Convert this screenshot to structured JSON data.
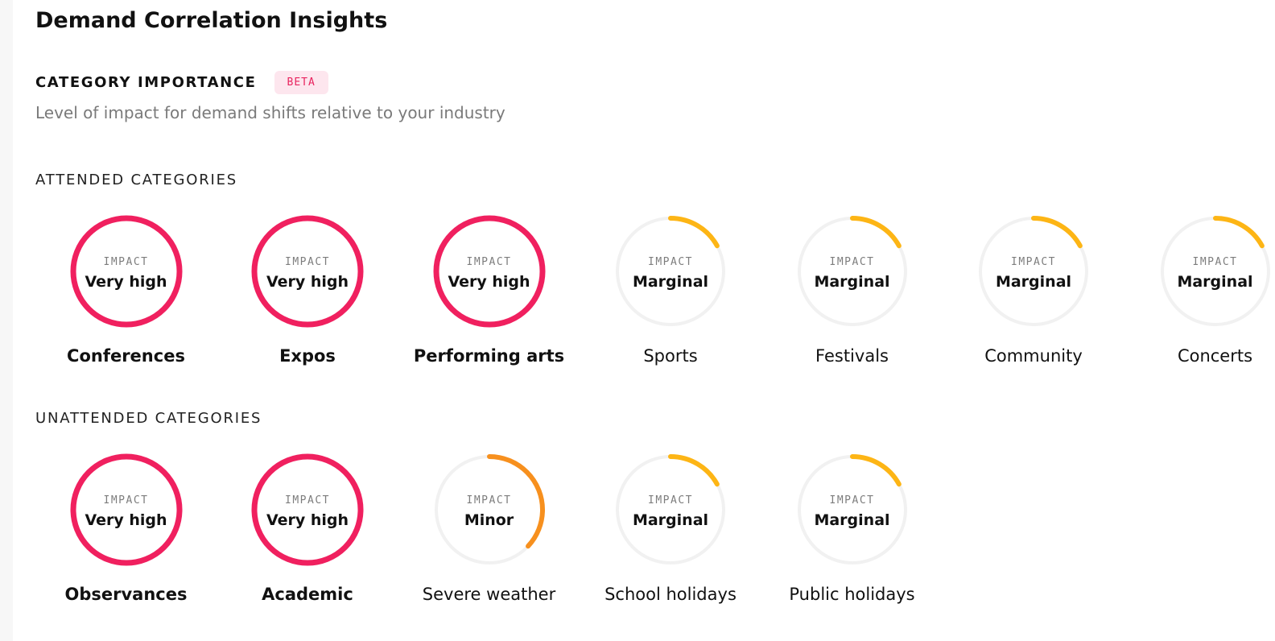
{
  "page": {
    "title": "Demand Correlation Insights"
  },
  "importance": {
    "title": "CATEGORY IMPORTANCE",
    "badge": "BETA",
    "subtitle": "Level of impact for demand shifts relative to your industry"
  },
  "impact_label": "IMPACT",
  "colors": {
    "very_high": "#f0205f",
    "minor": "#f7901e",
    "marginal": "#fdb515",
    "track": "#f1f1f1",
    "badge_bg": "#fde6ee",
    "badge_text": "#e8245f"
  },
  "attended": {
    "label": "ATTENDED CATEGORIES",
    "items": [
      {
        "name": "Conferences",
        "impact": "Very high",
        "level": "very_high",
        "fill": 1.0,
        "strong": true
      },
      {
        "name": "Expos",
        "impact": "Very high",
        "level": "very_high",
        "fill": 1.0,
        "strong": true
      },
      {
        "name": "Performing arts",
        "impact": "Very high",
        "level": "very_high",
        "fill": 1.0,
        "strong": true
      },
      {
        "name": "Sports",
        "impact": "Marginal",
        "level": "marginal",
        "fill": 0.17,
        "strong": false
      },
      {
        "name": "Festivals",
        "impact": "Marginal",
        "level": "marginal",
        "fill": 0.17,
        "strong": false
      },
      {
        "name": "Community",
        "impact": "Marginal",
        "level": "marginal",
        "fill": 0.17,
        "strong": false
      },
      {
        "name": "Concerts",
        "impact": "Marginal",
        "level": "marginal",
        "fill": 0.17,
        "strong": false
      }
    ]
  },
  "unattended": {
    "label": "UNATTENDED CATEGORIES",
    "items": [
      {
        "name": "Observances",
        "impact": "Very high",
        "level": "very_high",
        "fill": 1.0,
        "strong": true
      },
      {
        "name": "Academic",
        "impact": "Very high",
        "level": "very_high",
        "fill": 1.0,
        "strong": true
      },
      {
        "name": "Severe weather",
        "impact": "Minor",
        "level": "minor",
        "fill": 0.37,
        "strong": false
      },
      {
        "name": "School holidays",
        "impact": "Marginal",
        "level": "marginal",
        "fill": 0.17,
        "strong": false
      },
      {
        "name": "Public holidays",
        "impact": "Marginal",
        "level": "marginal",
        "fill": 0.17,
        "strong": false
      }
    ]
  }
}
